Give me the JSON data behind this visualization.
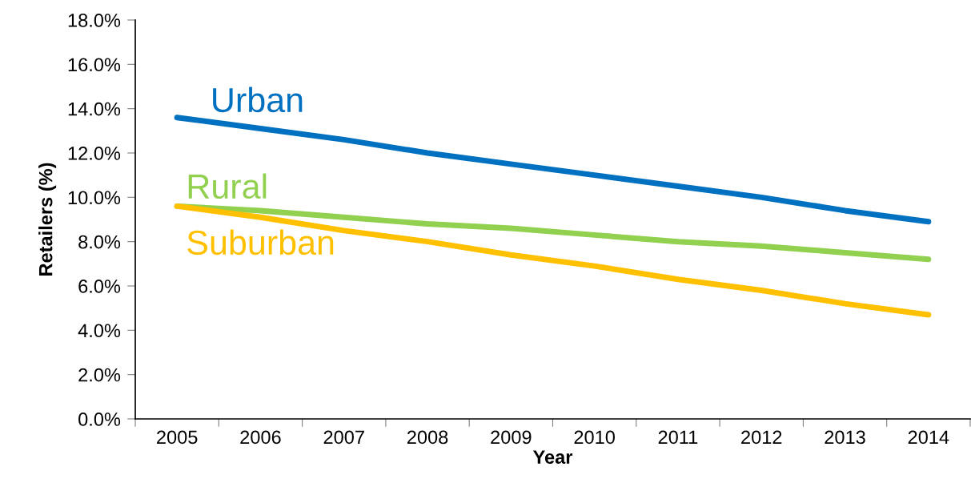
{
  "chart_data": {
    "type": "line",
    "xlabel": "Year",
    "ylabel": "Retailers (%)",
    "categories": [
      "2005",
      "2006",
      "2007",
      "2008",
      "2009",
      "2010",
      "2011",
      "2012",
      "2013",
      "2014"
    ],
    "ylim": [
      0,
      18
    ],
    "yticks": [
      {
        "value": 0,
        "label": "0.0%"
      },
      {
        "value": 2,
        "label": "2.0%"
      },
      {
        "value": 4,
        "label": "4.0%"
      },
      {
        "value": 6,
        "label": "6.0%"
      },
      {
        "value": 8,
        "label": "8.0%"
      },
      {
        "value": 10,
        "label": "10.0%"
      },
      {
        "value": 12,
        "label": "12.0%"
      },
      {
        "value": 14,
        "label": "14.0%"
      },
      {
        "value": 16,
        "label": "16.0%"
      },
      {
        "value": 18,
        "label": "18.0%"
      }
    ],
    "series": [
      {
        "name": "Urban",
        "color": "#0070c0",
        "values": [
          13.6,
          13.1,
          12.6,
          12.0,
          11.5,
          11.0,
          10.5,
          10.0,
          9.4,
          8.9
        ]
      },
      {
        "name": "Rural",
        "color": "#92d050",
        "values": [
          9.6,
          9.4,
          9.1,
          8.8,
          8.6,
          8.3,
          8.0,
          7.8,
          7.5,
          7.2
        ]
      },
      {
        "name": "Suburban",
        "color": "#ffc000",
        "values": [
          9.6,
          9.1,
          8.5,
          8.0,
          7.4,
          6.9,
          6.3,
          5.8,
          5.2,
          4.7
        ]
      }
    ]
  }
}
